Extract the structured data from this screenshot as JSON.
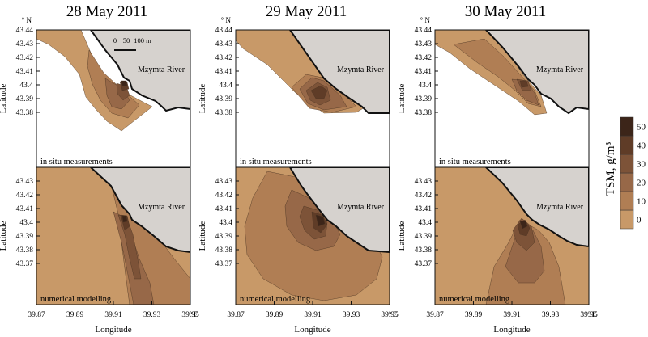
{
  "figure": {
    "dates": [
      "28 May 2011",
      "29 May 2011",
      "30 May 2011"
    ],
    "top_row_label": "in situ measurements",
    "bottom_row_label": "numerical modelling",
    "river_label": "Mzymta River",
    "y_axis_label": "Latitude",
    "x_axis_label": "Longitude",
    "lat_ticks": [
      "43.44",
      "43.43",
      "43.42",
      "43.41",
      "43.4",
      "43.39",
      "43.38"
    ],
    "lat_ticks_bottom": [
      "43.43",
      "43.42",
      "43.41",
      "43.4",
      "43.39",
      "43.38",
      "43.37"
    ],
    "lat_top_corner": "43.44",
    "lat_unit": "° N",
    "lon_ticks": [
      "39.87",
      "39.89",
      "39.91",
      "39.93",
      "39.95"
    ],
    "lon_unit": "° E",
    "scale_bar": {
      "ticks": [
        "0",
        "50",
        "100 m"
      ]
    },
    "colorbar": {
      "title": "TSM, g/m³",
      "ticks": [
        "0",
        "10",
        "20",
        "30",
        "40",
        "50"
      ],
      "colors": [
        "#c89968",
        "#b07e54",
        "#976848",
        "#7d5338",
        "#5f3c27",
        "#3c2519"
      ]
    },
    "colors": {
      "land": "#d6d2ce",
      "sea_blank": "#ffffff",
      "outline": "#111111"
    }
  }
}
